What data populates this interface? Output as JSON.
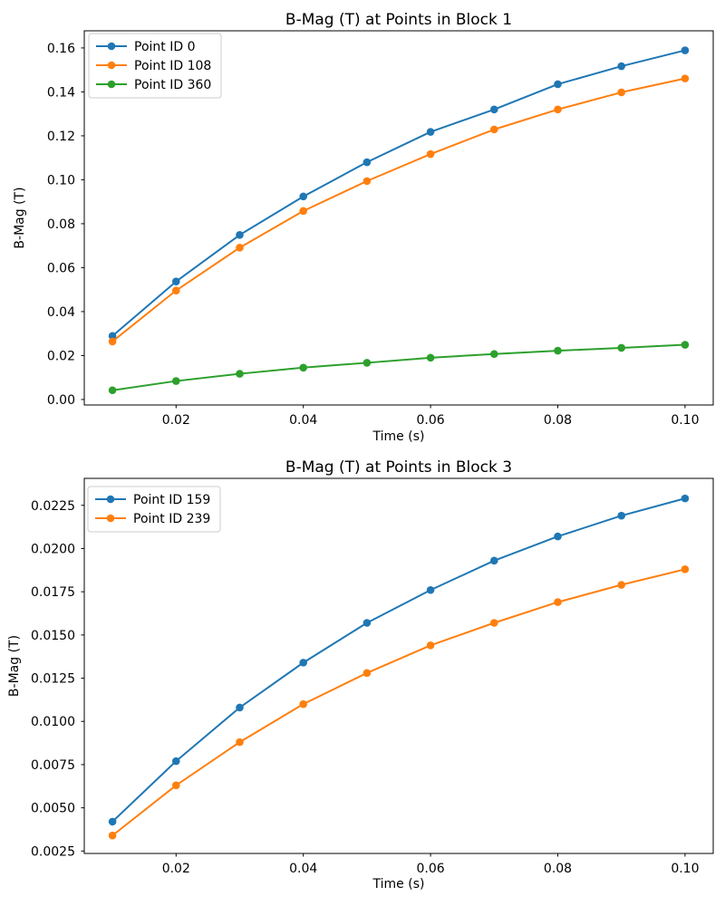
{
  "figure": {
    "background": "#ffffff",
    "spine_color": "#000000",
    "legend_border_color": "#cccccc",
    "legend_background": "#ffffff"
  },
  "chart_data": [
    {
      "type": "line",
      "title": "B-Mag (T) at Points in Block 1",
      "xlabel": "Time (s)",
      "ylabel": "B-Mag (T)",
      "x": [
        0.01,
        0.02,
        0.03,
        0.04,
        0.05,
        0.06,
        0.07,
        0.08,
        0.09,
        0.1
      ],
      "series": [
        {
          "name": "Point ID 0",
          "color": "#1f77b4",
          "values": [
            0.0289,
            0.0537,
            0.0749,
            0.0924,
            0.108,
            0.1218,
            0.132,
            0.1435,
            0.1517,
            0.1589
          ]
        },
        {
          "name": "Point ID 108",
          "color": "#ff7f0e",
          "values": [
            0.0264,
            0.0496,
            0.0691,
            0.0858,
            0.0994,
            0.1117,
            0.1229,
            0.132,
            0.1398,
            0.1461
          ]
        },
        {
          "name": "Point ID 360",
          "color": "#2ca02c",
          "values": [
            0.0042,
            0.0084,
            0.0117,
            0.0145,
            0.0167,
            0.019,
            0.0207,
            0.0222,
            0.0235,
            0.0249
          ]
        }
      ],
      "xlim": [
        0.00557,
        0.10443
      ],
      "ylim": [
        -0.0025,
        0.1678
      ],
      "xticks": [
        0.02,
        0.04,
        0.06,
        0.08,
        0.1
      ],
      "xtick_labels": [
        "0.02",
        "0.04",
        "0.06",
        "0.08",
        "0.10"
      ],
      "yticks": [
        0.0,
        0.02,
        0.04,
        0.06,
        0.08,
        0.1,
        0.12,
        0.14,
        0.16
      ],
      "ytick_labels": [
        "0.00",
        "0.02",
        "0.04",
        "0.06",
        "0.08",
        "0.10",
        "0.12",
        "0.14",
        "0.16"
      ],
      "legend": {
        "location": "upper left"
      },
      "grid": false
    },
    {
      "type": "line",
      "title": "B-Mag (T) at Points in Block 3",
      "xlabel": "Time (s)",
      "ylabel": "B-Mag (T)",
      "x": [
        0.01,
        0.02,
        0.03,
        0.04,
        0.05,
        0.06,
        0.07,
        0.08,
        0.09,
        0.1
      ],
      "series": [
        {
          "name": "Point ID 159",
          "color": "#1f77b4",
          "values": [
            0.0042,
            0.0077,
            0.0108,
            0.0134,
            0.0157,
            0.0176,
            0.0193,
            0.0207,
            0.0219,
            0.0229
          ]
        },
        {
          "name": "Point ID 239",
          "color": "#ff7f0e",
          "values": [
            0.0034,
            0.0063,
            0.0088,
            0.011,
            0.0128,
            0.0144,
            0.0157,
            0.0169,
            0.0179,
            0.0188
          ]
        }
      ],
      "xlim": [
        0.00557,
        0.10443
      ],
      "ylim": [
        0.00236,
        0.02406
      ],
      "xticks": [
        0.02,
        0.04,
        0.06,
        0.08,
        0.1
      ],
      "xtick_labels": [
        "0.02",
        "0.04",
        "0.06",
        "0.08",
        "0.10"
      ],
      "yticks": [
        0.0025,
        0.005,
        0.0075,
        0.01,
        0.0125,
        0.015,
        0.0175,
        0.02,
        0.0225
      ],
      "ytick_labels": [
        "0.0025",
        "0.0050",
        "0.0075",
        "0.0100",
        "0.0125",
        "0.0150",
        "0.0175",
        "0.0200",
        "0.0225"
      ],
      "legend": {
        "location": "upper left"
      },
      "grid": false
    }
  ]
}
